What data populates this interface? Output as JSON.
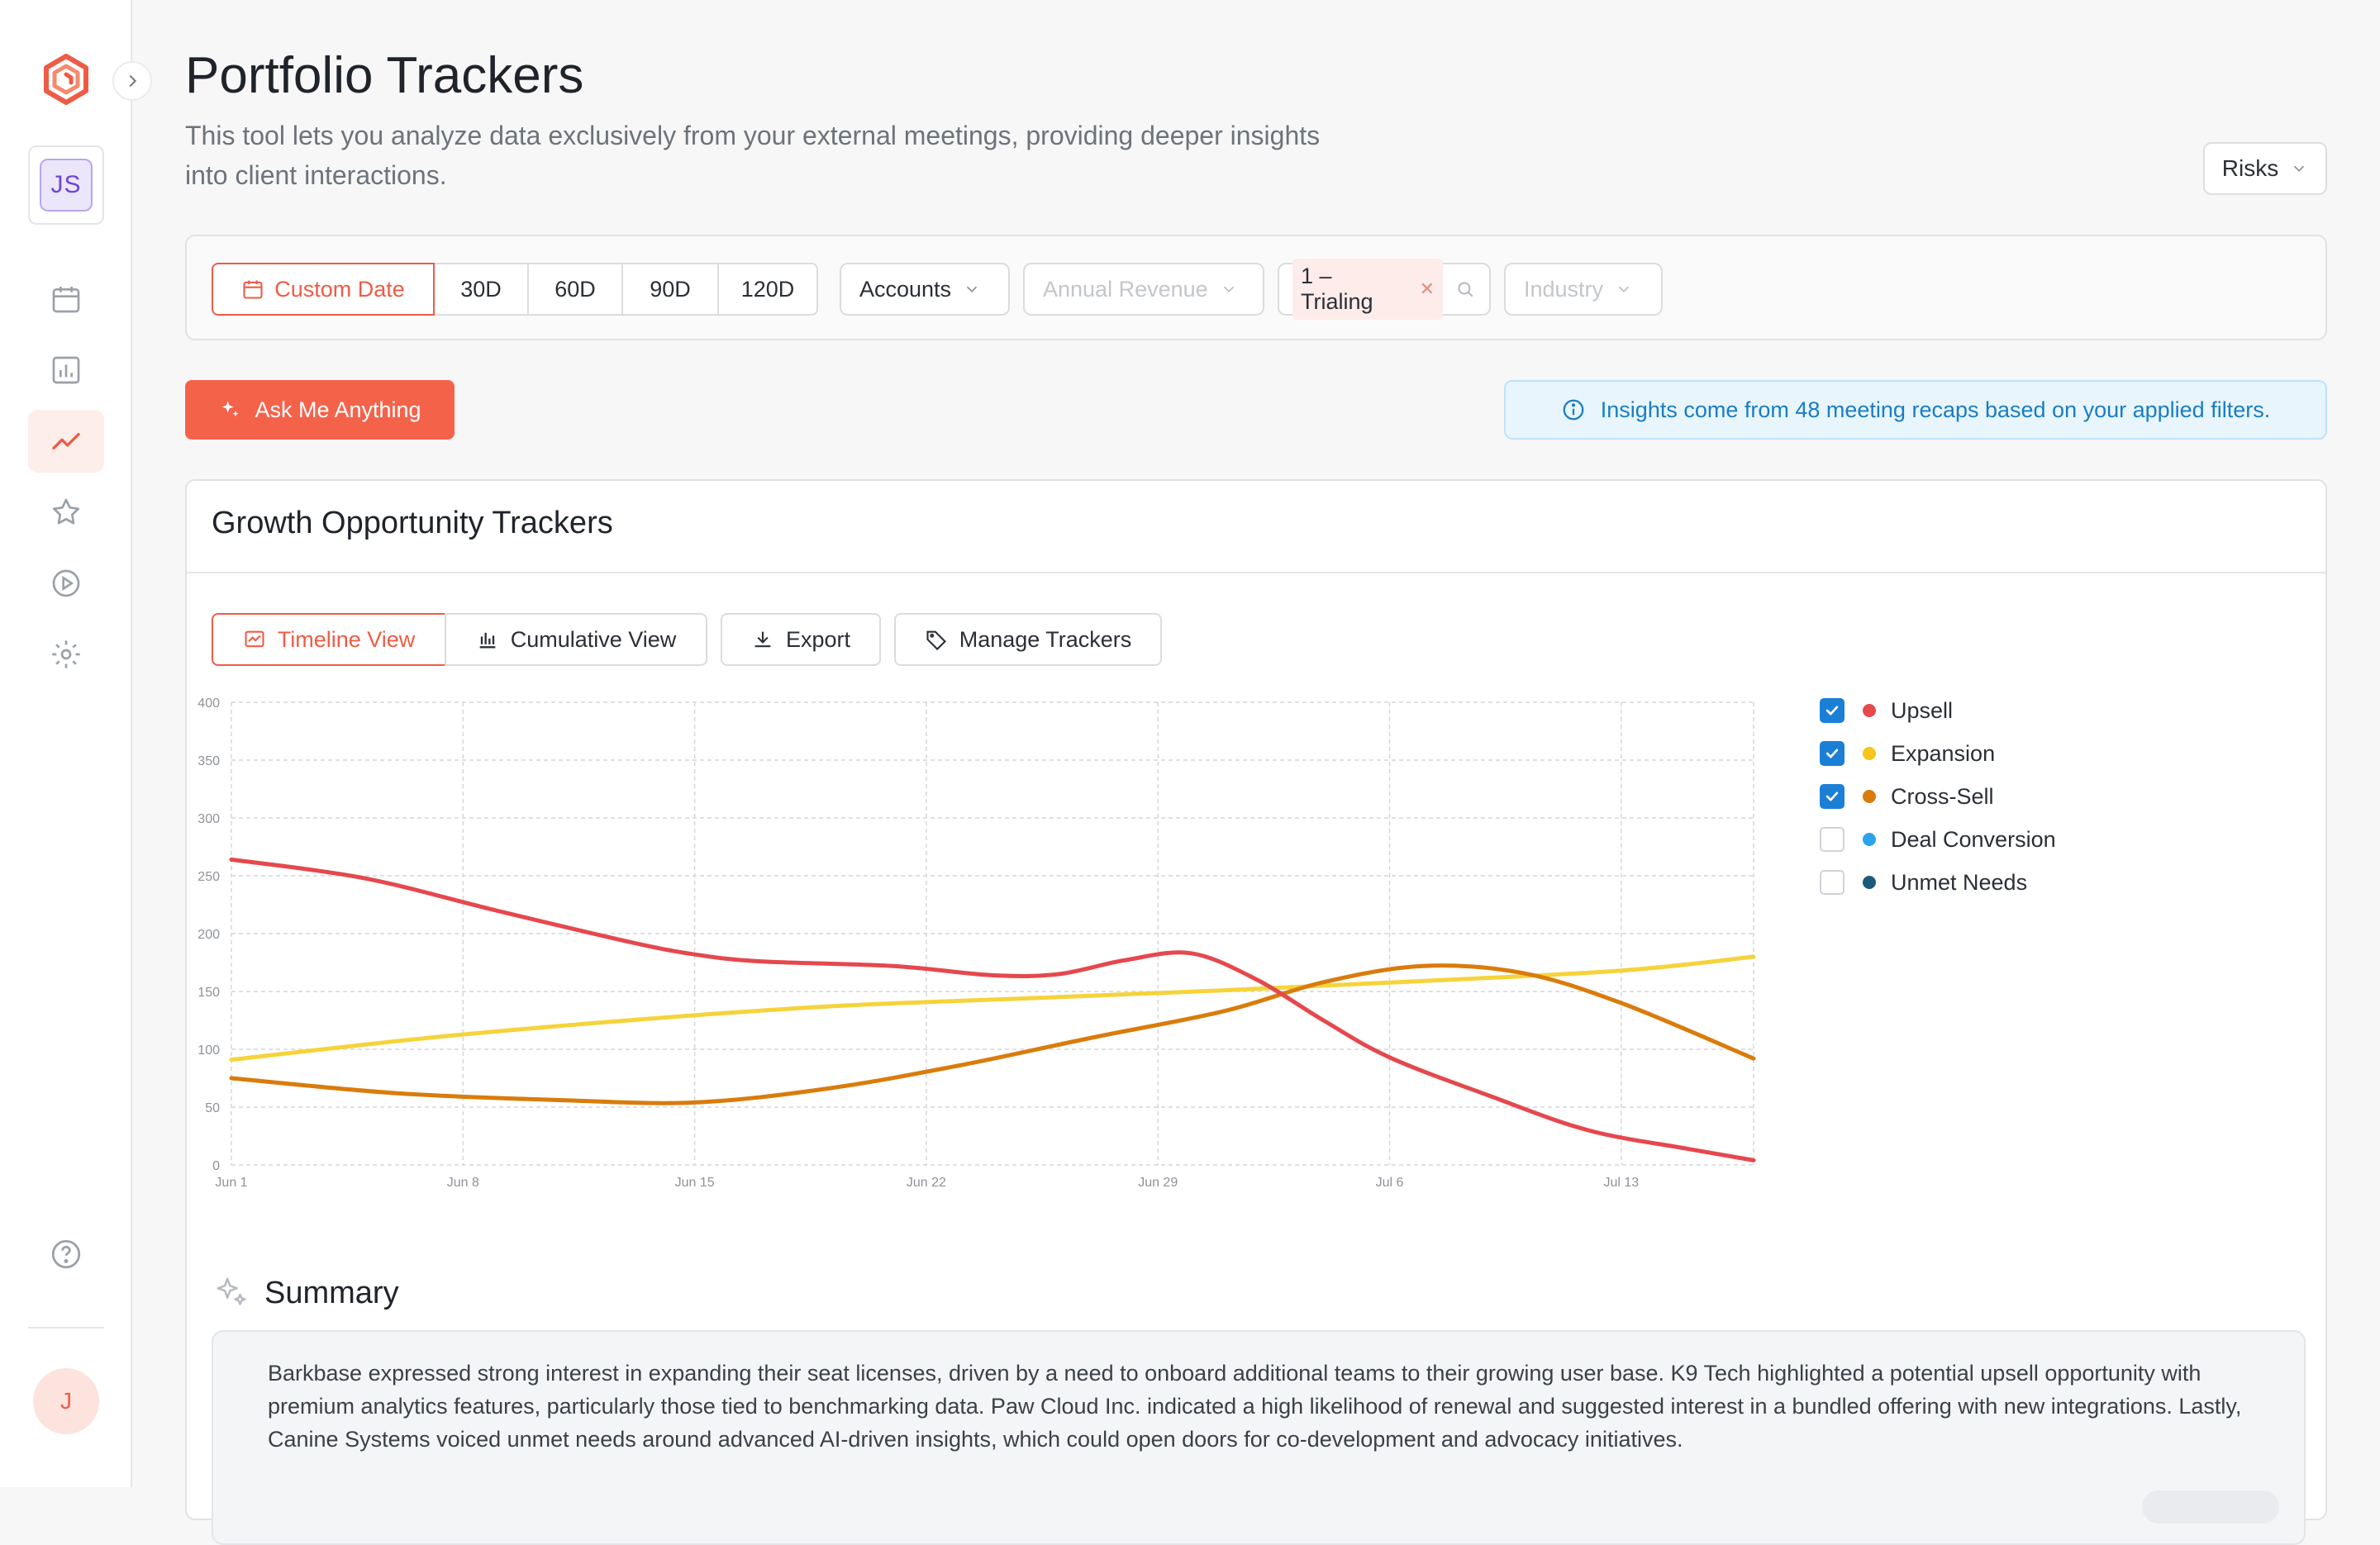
{
  "sidebar": {
    "workspace_initials": "JS",
    "user_initial": "J",
    "nav": [
      {
        "icon": "calendar-icon"
      },
      {
        "icon": "bar-chart-icon"
      },
      {
        "icon": "trend-line-icon",
        "active": true
      },
      {
        "icon": "star-icon"
      },
      {
        "icon": "play-circle-icon"
      },
      {
        "icon": "gear-icon"
      }
    ],
    "help_icon": "help-icon"
  },
  "header": {
    "title": "Portfolio Trackers",
    "description": "This tool lets you analyze data exclusively from your external meetings, providing deeper insights into client interactions.",
    "view_select": "Risks"
  },
  "filters": {
    "custom_date": "Custom Date",
    "ranges": [
      "30D",
      "60D",
      "90D",
      "120D"
    ],
    "accounts": "Accounts",
    "annual_revenue": "Annual Revenue",
    "stage_tag": "1 – Trialing",
    "industry": "Industry"
  },
  "ask_button": "Ask Me Anything",
  "info_banner": "Insights come from 48 meeting recaps based on your applied filters.",
  "card": {
    "title": "Growth Opportunity Trackers",
    "toolbar": {
      "timeline": "Timeline View",
      "cumulative": "Cumulative View",
      "export": "Export",
      "manage": "Manage Trackers"
    }
  },
  "legend": [
    {
      "name": "Upsell",
      "color": "#e5484d",
      "checked": true
    },
    {
      "name": "Expansion",
      "color": "#f5c518",
      "checked": true
    },
    {
      "name": "Cross-Sell",
      "color": "#d97c0b",
      "checked": true
    },
    {
      "name": "Deal Conversion",
      "color": "#2ba3ea",
      "checked": false
    },
    {
      "name": "Unmet Needs",
      "color": "#1b5a7a",
      "checked": false
    }
  ],
  "chart_data": {
    "type": "line",
    "x_ticks": [
      "Jun 1",
      "Jun 8",
      "Jun 15",
      "Jun 22",
      "Jun 29",
      "Jul 6",
      "Jul 13"
    ],
    "y_ticks": [
      0,
      50,
      100,
      150,
      200,
      250,
      300,
      350,
      400
    ],
    "ylim": [
      0,
      400
    ],
    "x_days": [
      0,
      7,
      14,
      21,
      28,
      35,
      42
    ],
    "xlim": [
      0,
      46
    ],
    "grid": true,
    "series": [
      {
        "name": "Upsell",
        "color": "#e5484d",
        "x": [
          0,
          4,
          8,
          12,
          14,
          16,
          20,
          23,
          25,
          27,
          29,
          31,
          33,
          35,
          38,
          41,
          44,
          46
        ],
        "y": [
          264,
          248,
          220,
          193,
          182,
          176,
          172,
          164,
          165,
          177,
          183,
          160,
          125,
          93,
          60,
          30,
          14,
          4
        ]
      },
      {
        "name": "Expansion",
        "color": "#f5d33a",
        "x": [
          0,
          6,
          12,
          18,
          24,
          30,
          36,
          42,
          46
        ],
        "y": [
          91,
          110,
          125,
          137,
          144,
          151,
          159,
          168,
          180
        ]
      },
      {
        "name": "Cross-Sell",
        "color": "#d97c0b",
        "x": [
          0,
          5,
          10,
          14,
          18,
          22,
          26,
          30,
          33,
          36,
          39,
          42,
          46
        ],
        "y": [
          75,
          62,
          56,
          54,
          66,
          86,
          110,
          133,
          158,
          172,
          166,
          140,
          92
        ]
      }
    ]
  },
  "summary": {
    "title": "Summary",
    "text": "Barkbase expressed strong interest in expanding their seat licenses, driven by a need to onboard additional teams to their growing user base. K9 Tech highlighted a potential upsell opportunity with premium analytics features, particularly those tied to benchmarking data. Paw Cloud Inc. indicated a high likelihood of renewal and suggested interest in a bundled offering with new integrations. Lastly, Canine Systems voiced unmet needs around advanced AI-driven insights, which could open doors for co-development and advocacy initiatives."
  }
}
